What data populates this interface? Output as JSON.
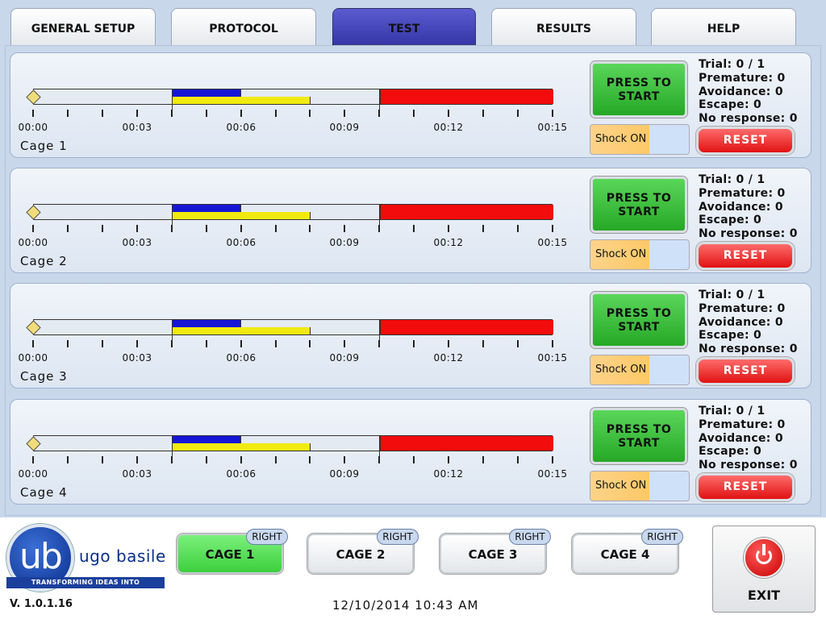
{
  "tabs": [
    {
      "label": "GENERAL SETUP"
    },
    {
      "label": "PROTOCOL"
    },
    {
      "label": "TEST",
      "active": true
    },
    {
      "label": "RESULTS"
    },
    {
      "label": "HELP"
    }
  ],
  "timeline": {
    "ticks": [
      "00:00",
      "00:03",
      "00:06",
      "00:09",
      "00:12",
      "00:15"
    ],
    "max_seconds": 15,
    "blue_span_s": [
      4,
      6
    ],
    "yellow_span_s": [
      4,
      8
    ],
    "red_span_s": [
      10,
      15
    ]
  },
  "cages": [
    {
      "label": "Cage 1",
      "start_label": "PRESS TO START",
      "shock_label": "Shock ON",
      "reset_label": "RESET",
      "trial": "Trial: 0 / 1",
      "premature": "Premature: 0",
      "avoidance": "Avoidance: 0",
      "escape": "Escape: 0",
      "no_response": "No response: 0"
    },
    {
      "label": "Cage 2",
      "start_label": "PRESS TO START",
      "shock_label": "Shock ON",
      "reset_label": "RESET",
      "trial": "Trial: 0 / 1",
      "premature": "Premature: 0",
      "avoidance": "Avoidance: 0",
      "escape": "Escape: 0",
      "no_response": "No response: 0"
    },
    {
      "label": "Cage 3",
      "start_label": "PRESS TO START",
      "shock_label": "Shock ON",
      "reset_label": "RESET",
      "trial": "Trial: 0 / 1",
      "premature": "Premature: 0",
      "avoidance": "Avoidance: 0",
      "escape": "Escape: 0",
      "no_response": "No response: 0"
    },
    {
      "label": "Cage 4",
      "start_label": "PRESS TO START",
      "shock_label": "Shock ON",
      "reset_label": "RESET",
      "trial": "Trial: 0 / 1",
      "premature": "Premature: 0",
      "avoidance": "Avoidance: 0",
      "escape": "Escape: 0",
      "no_response": "No response: 0"
    }
  ],
  "footer": {
    "logo_mark": "ub",
    "brand": "ugo basile",
    "tagline": "TRANSFORMING IDEAS INTO INSTRUMENTS",
    "version": "V. 1.0.1.16",
    "datetime": "12/10/2014 10:43 AM",
    "cage_buttons": [
      {
        "label": "CAGE 1",
        "side": "RIGHT",
        "selected": true
      },
      {
        "label": "CAGE 2",
        "side": "RIGHT"
      },
      {
        "label": "CAGE 3",
        "side": "RIGHT"
      },
      {
        "label": "CAGE 4",
        "side": "RIGHT"
      }
    ],
    "exit_label": "EXIT"
  },
  "colors": {
    "background": "#c9d7eb",
    "active_tab": "#4848bf",
    "start_green": "#3cc23c",
    "reset_red": "#ef2a2a",
    "timeline_blue": "#1515d6",
    "timeline_yellow": "#f0ea10",
    "timeline_red": "#f20c0c",
    "shock_orange": "#fdc866",
    "selected_cage": "#5ee05e"
  },
  "icons": {
    "exit": "power-icon",
    "start_marker": "diamond-marker-icon"
  }
}
